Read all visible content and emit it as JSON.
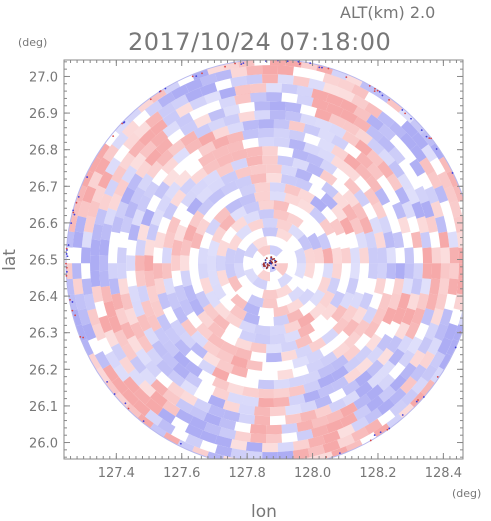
{
  "chart_data": {
    "type": "heatmap",
    "title": "2017/10/24 07:18:00",
    "subtitle": "ALT(km) 2.0",
    "xlabel": "lon",
    "ylabel": "lat",
    "xunit": "(deg)",
    "yunit": "(deg)",
    "xlim": [
      127.24,
      128.46
    ],
    "ylim": [
      25.955,
      27.045
    ],
    "xticks": [
      "127.4",
      "127.6",
      "127.8",
      "128.0",
      "128.2",
      "128.4"
    ],
    "yticks": [
      "26.0",
      "26.1",
      "26.2",
      "26.3",
      "26.4",
      "26.5",
      "26.6",
      "26.7",
      "26.8",
      "26.9",
      "27.0"
    ],
    "center": {
      "lon": 127.87,
      "lat": 26.49
    },
    "colors": {
      "positive": "#f49a9a",
      "negative": "#9f9ff2",
      "neutral": "#ffffff"
    }
  }
}
